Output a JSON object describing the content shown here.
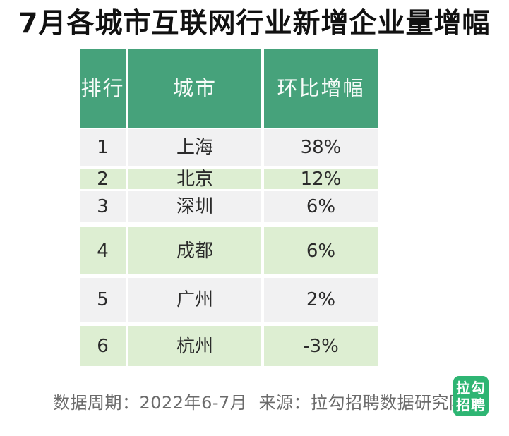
{
  "chart_data": {
    "type": "table",
    "title": "7月各城市互联网行业新增企业量增幅",
    "columns": [
      "排行",
      "城市",
      "环比增幅"
    ],
    "rows": [
      [
        "1",
        "上海",
        "38%"
      ],
      [
        "2",
        "北京",
        "12%"
      ],
      [
        "3",
        "深圳",
        "6%"
      ],
      [
        "4",
        "成都",
        "6%"
      ],
      [
        "5",
        "广州",
        "2%"
      ],
      [
        "6",
        "杭州",
        "-3%"
      ]
    ],
    "growth_pct_values": [
      38,
      12,
      6,
      6,
      2,
      -3
    ],
    "period": "2022年6-7月",
    "source": "拉勾招聘数据研究院"
  },
  "footer": {
    "note": "数据周期：2022年6-7月  来源：拉勾招聘数据研究院"
  },
  "logo": {
    "line1": "拉勾",
    "line2": "招聘"
  },
  "colors": {
    "header_green": "#46a27b",
    "row_green": "#ddeed2",
    "row_gray": "#f1f1f2",
    "logo_green": "#2eb573",
    "footer_text": "#6b6b6b"
  }
}
